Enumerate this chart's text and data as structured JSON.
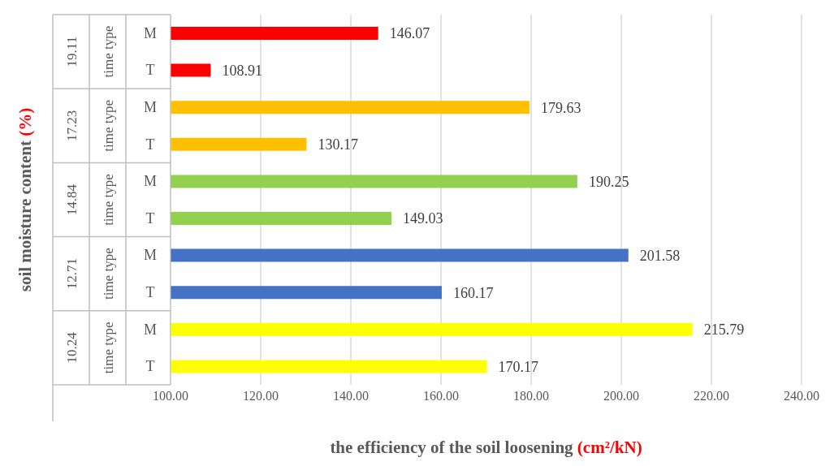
{
  "chart_data": {
    "type": "bar",
    "orientation": "horizontal",
    "xlabel": "the efficiency of the soil loosening (cm²/kN)",
    "categories": [
      "M",
      "T",
      "M",
      "T",
      "M",
      "T",
      "M",
      "T",
      "M",
      "T"
    ],
    "values": [
      146.07,
      108.91,
      179.63,
      130.17,
      190.25,
      149.03,
      201.58,
      160.17,
      215.79,
      170.17
    ],
    "colors": [
      "#ff0000",
      "#ff0000",
      "#ffc000",
      "#ffc000",
      "#92d050",
      "#92d050",
      "#4472c4",
      "#4472c4",
      "#ffff00",
      "#ffff00"
    ],
    "annotations": [
      "19.11",
      "time type",
      "17.23",
      "time type",
      "14.84",
      "time type",
      "12.71",
      "time type",
      "10.24",
      "time type",
      "soil moisture content (%)"
    ],
    "xlim": [
      100,
      240
    ],
    "xticks": [
      {
        "value": 100,
        "label": "100.00"
      },
      {
        "value": 120,
        "label": "120.00"
      },
      {
        "value": 140,
        "label": "140.00"
      },
      {
        "value": 160,
        "label": "160.00"
      },
      {
        "value": 180,
        "label": "180.00"
      },
      {
        "value": 200,
        "label": "200.00"
      },
      {
        "value": 220,
        "label": "220.00"
      },
      {
        "value": 240,
        "label": "240.00"
      }
    ],
    "grid": "x",
    "data_labels": true,
    "legend": false
  }
}
